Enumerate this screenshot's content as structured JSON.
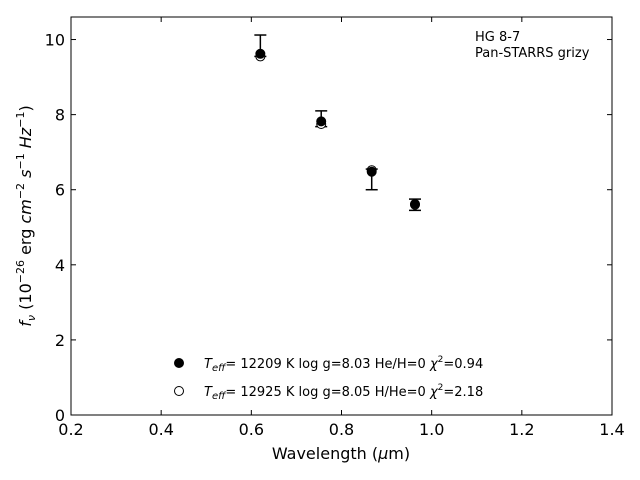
{
  "chart_data": {
    "type": "scatter",
    "xlabel": "Wavelength (μm)",
    "ylabel": "f_ν (10^−26 erg cm^−2 s^−1 Hz^−1)",
    "xlim": [
      0.2,
      1.4
    ],
    "ylim": [
      0,
      10.6
    ],
    "xticks": [
      "0.2",
      "0.4",
      "0.6",
      "0.8",
      "1.0",
      "1.2",
      "1.4"
    ],
    "yticks": [
      "0",
      "2",
      "4",
      "6",
      "8",
      "10"
    ],
    "annotation": [
      "HG 8-7",
      "Pan-STARRS grizy"
    ],
    "legend_position": "bottom-center",
    "grid": false,
    "observed": {
      "x": [
        0.62,
        0.755,
        0.867,
        0.963
      ],
      "y": [
        9.65,
        7.85,
        6.45,
        5.6
      ],
      "yerr_low": [
        9.55,
        7.68,
        6.0,
        5.45
      ],
      "yerr_high": [
        10.12,
        8.1,
        6.55,
        5.75
      ]
    },
    "series": [
      {
        "name": "Teff= 12209 K  log g=8.03  He/H=0  χ²=0.94",
        "marker": "filled-circle",
        "x": [
          0.62,
          0.755,
          0.867,
          0.963
        ],
        "y": [
          9.62,
          7.82,
          6.48,
          5.62
        ]
      },
      {
        "name": "Teff= 12925 K  log g=8.05  H/He=0  χ²=2.18",
        "marker": "open-circle",
        "x": [
          0.62,
          0.755,
          0.867,
          0.963
        ],
        "y": [
          9.55,
          7.75,
          6.52,
          5.6
        ]
      }
    ],
    "legend": [
      {
        "teff": "12209 K",
        "logg": "log g=8.03",
        "comp": "He/H=0",
        "chi2": "0.94"
      },
      {
        "teff": "12925 K",
        "logg": "log g=8.05",
        "comp": "H/He=0",
        "chi2": "2.18"
      }
    ]
  }
}
